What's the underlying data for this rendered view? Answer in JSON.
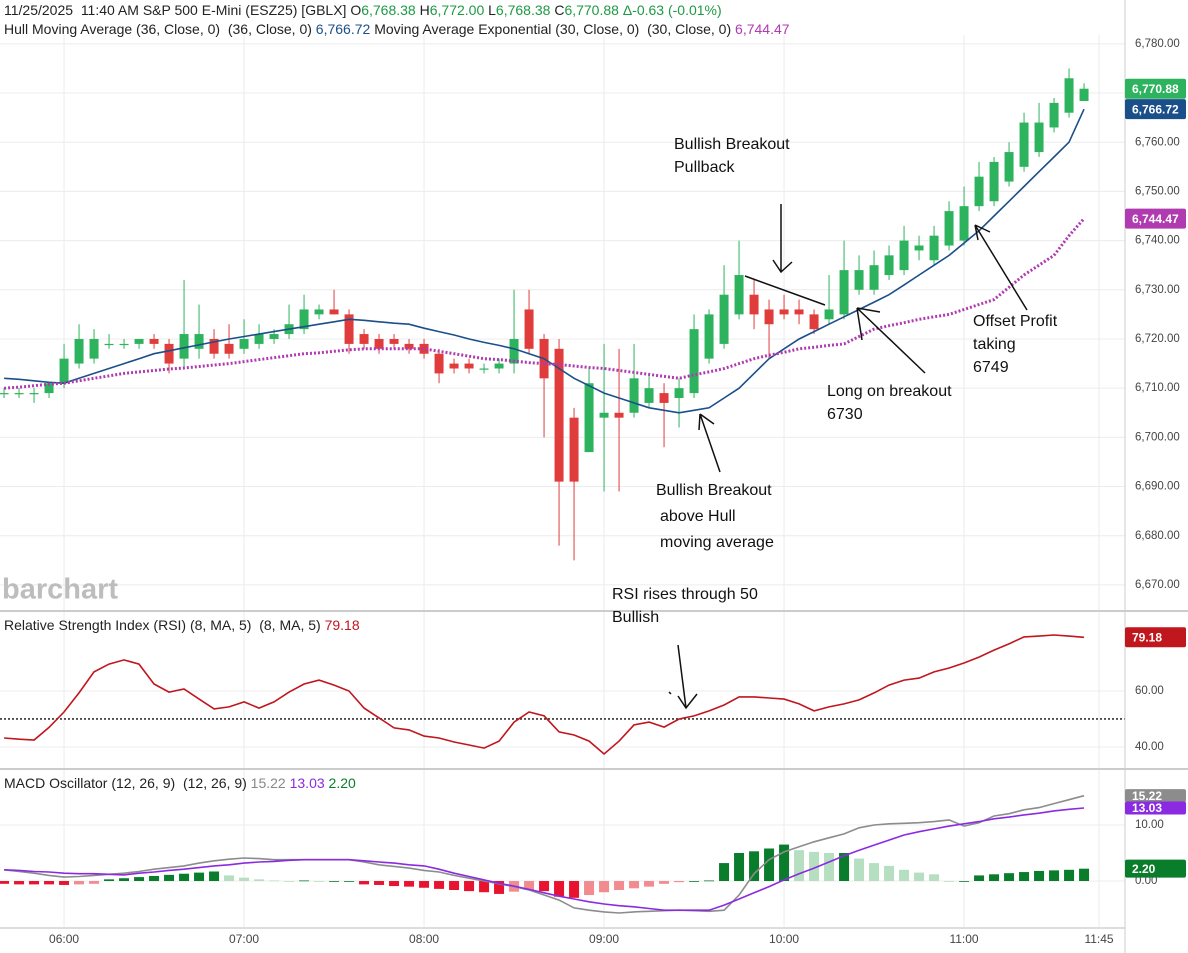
{
  "header": {
    "date": "11/25/2025",
    "time": "11:40 AM",
    "symbol": "S&P 500 E-Mini (ESZ25) [GBLX]",
    "ohlc": [
      {
        "key": "O",
        "value": "6,768.38"
      },
      {
        "key": "H",
        "value": "6,772.00"
      },
      {
        "key": "L",
        "value": "6,768.38"
      },
      {
        "key": "C",
        "value": "6,770.88"
      }
    ],
    "change": "Δ-0.63 (-0.01%)"
  },
  "chart_data": [
    {
      "type": "candlestick",
      "watermark": "barchart",
      "grid": true,
      "xlim": [
        -0.27,
        74.73
      ],
      "xticks": [
        {
          "value": 4,
          "label": "06:00"
        },
        {
          "value": 16,
          "label": "07:00"
        },
        {
          "value": 28,
          "label": "08:00"
        },
        {
          "value": 40,
          "label": "09:00"
        },
        {
          "value": 52,
          "label": "10:00"
        },
        {
          "value": 64,
          "label": "11:00"
        },
        {
          "value": 73,
          "label": "11:45"
        }
      ],
      "ylim": [
        6664.9,
        6781.8
      ],
      "yticks": [
        {
          "value": 6670,
          "label": "6,670.00"
        },
        {
          "value": 6680,
          "label": "6,680.00"
        },
        {
          "value": 6690,
          "label": "6,690.00"
        },
        {
          "value": 6700,
          "label": "6,700.00"
        },
        {
          "value": 6710,
          "label": "6,710.00"
        },
        {
          "value": 6720,
          "label": "6,720.00"
        },
        {
          "value": 6730,
          "label": "6,730.00"
        },
        {
          "value": 6740,
          "label": "6,740.00"
        },
        {
          "value": 6750,
          "label": "6,750.00"
        },
        {
          "value": 6760,
          "label": "6,760.00"
        },
        {
          "value": 6770,
          "label": "6,770.00"
        },
        {
          "value": 6780,
          "label": "6,780.00"
        }
      ],
      "up_color": "#2db35d",
      "down_color": "#e03c3c",
      "last_label": "6,770.88",
      "open": [
        6709,
        6709,
        6709,
        6709,
        6711,
        6715,
        6716,
        6719,
        6719,
        6719,
        6720,
        6719,
        6716,
        6718,
        6720,
        6719,
        6718,
        6719,
        6720,
        6721,
        6722,
        6725,
        6726,
        6725,
        6721,
        6720,
        6720,
        6719,
        6719,
        6717,
        6715,
        6715,
        6714,
        6714,
        6715,
        6726,
        6720,
        6718,
        6704,
        6697,
        6704,
        6705,
        6705,
        6707,
        6709,
        6708,
        6709,
        6716,
        6719,
        6725,
        6729,
        6726,
        6726,
        6726,
        6725,
        6724,
        6725,
        6730,
        6730,
        6733,
        6734,
        6738,
        6736,
        6739,
        6740,
        6747,
        6748,
        6752,
        6755,
        6758,
        6763,
        6766,
        6768.38
      ],
      "high": [
        6710,
        6710,
        6710,
        6711,
        6719,
        6723,
        6722,
        6721,
        6720,
        6720,
        6721,
        6720,
        6732,
        6727,
        6722,
        6723,
        6724,
        6723,
        6722,
        6727,
        6729,
        6727,
        6730,
        6726,
        6722,
        6721,
        6721,
        6720,
        6720,
        6718,
        6716,
        6716,
        6715,
        6716,
        6730,
        6730,
        6721,
        6720,
        6706,
        6714,
        6719,
        6718,
        6719,
        6713,
        6711,
        6712,
        6725,
        6726,
        6735,
        6740,
        6732,
        6728,
        6729,
        6728,
        6726,
        6733,
        6740,
        6737,
        6738,
        6739,
        6743,
        6741,
        6743,
        6748,
        6751,
        6756,
        6757,
        6760,
        6766,
        6768,
        6769,
        6775,
        6772
      ],
      "low": [
        6708,
        6708,
        6707,
        6708,
        6710,
        6714,
        6715,
        6718,
        6718,
        6718,
        6718,
        6713,
        6714,
        6716,
        6716,
        6716,
        6717,
        6718,
        6719,
        6720,
        6721,
        6724,
        6725,
        6717,
        6718,
        6717,
        6718,
        6717,
        6716,
        6711,
        6713,
        6713,
        6713,
        6713,
        6713,
        6717,
        6700,
        6678,
        6675,
        6697,
        6689,
        6689,
        6704,
        6706,
        6698,
        6702,
        6708,
        6715,
        6718,
        6724,
        6722,
        6716,
        6724,
        6723,
        6721,
        6723,
        6724,
        6729,
        6729,
        6732,
        6733,
        6736,
        6735,
        6738,
        6739,
        6746,
        6747,
        6751,
        6754,
        6757,
        6762,
        6765,
        6768.38
      ],
      "close": [
        6709,
        6709,
        6709,
        6711,
        6716,
        6720,
        6720,
        6719,
        6719,
        6720,
        6719,
        6715,
        6721,
        6721,
        6717,
        6717,
        6720,
        6721,
        6721,
        6723,
        6726,
        6726,
        6725,
        6719,
        6719,
        6718,
        6719,
        6718,
        6717,
        6713,
        6714,
        6714,
        6714,
        6715,
        6720,
        6718,
        6712,
        6691,
        6691,
        6711,
        6705,
        6704,
        6712,
        6710,
        6707,
        6710,
        6722,
        6725,
        6729,
        6733,
        6725,
        6723,
        6725,
        6725,
        6722,
        6726,
        6734,
        6734,
        6735,
        6737,
        6740,
        6739,
        6741,
        6746,
        6747,
        6753,
        6756,
        6758,
        6764,
        6764,
        6768,
        6773,
        6770.88
      ],
      "series": [
        {
          "name": "Hull Moving Average (36, Close, 0)",
          "params": "(36, Close, 0)",
          "color": "#1b4f8a",
          "style": "solid",
          "last_label": "6,766.72",
          "values": [
            6712,
            6711.8,
            6711.5,
            6711.2,
            6711,
            6712,
            6713,
            6714,
            6715,
            6716,
            6717,
            6717.6,
            6718.2,
            6718.8,
            6719.4,
            6720,
            6720.5,
            6721,
            6721.5,
            6722,
            6722.5,
            6723,
            6723.5,
            6724,
            6723.8,
            6723.5,
            6723.2,
            6723,
            6722.2,
            6721.5,
            6720.8,
            6720,
            6719.3,
            6718.7,
            6718,
            6717,
            6716,
            6714,
            6712,
            6710.5,
            6709,
            6708,
            6707,
            6706,
            6705.5,
            6705,
            6705.5,
            6706,
            6708,
            6710,
            6713,
            6716,
            6718,
            6720,
            6721.5,
            6723,
            6724.5,
            6726,
            6727.5,
            6729,
            6731,
            6733,
            6735,
            6737,
            6739.5,
            6742,
            6745,
            6748,
            6751,
            6754,
            6757,
            6760,
            6766.72
          ]
        },
        {
          "name": "Moving Average Exponential (30, Close, 0)",
          "params": "(30, Close, 0)",
          "color": "#b03ab0",
          "style": "dotted",
          "last_label": "6,744.47",
          "values": [
            6710,
            6710.2,
            6710.5,
            6710.8,
            6711,
            6711.5,
            6712,
            6712.5,
            6713,
            6713.3,
            6713.6,
            6713.9,
            6714.1,
            6714.4,
            6714.7,
            6715,
            6715.4,
            6715.8,
            6716.2,
            6716.6,
            6717,
            6717.2,
            6717.5,
            6717.8,
            6718,
            6718,
            6718,
            6718,
            6718,
            6717.5,
            6717,
            6716.5,
            6716,
            6715.8,
            6715.5,
            6715.2,
            6715,
            6714.8,
            6714.5,
            6714.2,
            6714,
            6713.6,
            6713.2,
            6712.8,
            6712.4,
            6712,
            6712.7,
            6713.3,
            6714,
            6715,
            6716,
            6716.7,
            6717.3,
            6718,
            6718.3,
            6718.7,
            6719,
            6720.5,
            6722,
            6722.7,
            6723.3,
            6724,
            6724.5,
            6725,
            6726,
            6727,
            6728,
            6730.5,
            6733,
            6735,
            6737,
            6741,
            6744.47
          ]
        }
      ],
      "annotations": [
        {
          "lines": [
            "Bullish Breakout",
            "Pullback"
          ]
        },
        {
          "lines": [
            "Long on breakout",
            "6730"
          ]
        },
        {
          "lines": [
            "Offset Profit",
            "taking",
            "6749"
          ]
        },
        {
          "lines": [
            "Bullish Breakout",
            "above Hull",
            "moving average"
          ]
        },
        {
          "lines": [
            "RSI rises through 50",
            "Bullish"
          ]
        }
      ]
    },
    {
      "type": "line",
      "title": "Relative Strength Index (RSI) (8, MA, 5)",
      "params": "(8, MA, 5)",
      "color": "#c0161e",
      "last_label": "79.18",
      "reference_line": 50,
      "grid": true,
      "ylim": [
        32.5,
        88.2
      ],
      "yticks": [
        {
          "value": 40,
          "label": "40.00"
        },
        {
          "value": 60,
          "label": "60.00"
        }
      ],
      "values": [
        43.2,
        42.8,
        42.5,
        47,
        52.5,
        59.3,
        66.8,
        69.6,
        71.1,
        69.6,
        62.5,
        59.6,
        60.7,
        57.1,
        53.6,
        54.3,
        56.1,
        53.9,
        56.1,
        59.6,
        62.5,
        63.9,
        62.1,
        60,
        53.9,
        50.4,
        46.8,
        46.1,
        43.9,
        43.2,
        41.8,
        40.7,
        39.6,
        42.1,
        48.9,
        52.5,
        51.1,
        45.4,
        44.3,
        42.1,
        37.5,
        42.1,
        47.9,
        48.9,
        47.1,
        50,
        51.1,
        52.9,
        55,
        57.9,
        57.9,
        57.5,
        57.1,
        55.4,
        52.9,
        54.3,
        55.4,
        56.8,
        59.3,
        62.1,
        63.9,
        64.6,
        66.8,
        68.2,
        70,
        72.1,
        74.6,
        76.8,
        79.3,
        79.6,
        80,
        79.6,
        79.18
      ]
    },
    {
      "type": "macd",
      "title": "MACD Oscillator (12, 26, 9)",
      "params": "(12, 26, 9)",
      "grid": true,
      "ylim": [
        -8.2,
        19.8
      ],
      "yticks": [
        {
          "value": 0,
          "label": "0.00"
        },
        {
          "value": 10,
          "label": "10.00"
        }
      ],
      "series": [
        {
          "color": "#8c8c8c",
          "last_label": "15.22",
          "values": [
            2.0,
            1.7,
            1.4,
            1.0,
            0.7,
            0.8,
            1.0,
            1.2,
            1.4,
            1.7,
            2.1,
            2.4,
            2.7,
            3.2,
            3.6,
            3.9,
            4.1,
            4.0,
            3.8,
            3.8,
            3.8,
            3.8,
            3.8,
            3.8,
            3.4,
            2.9,
            2.6,
            2.3,
            1.9,
            1.6,
            1.0,
            0.5,
            0,
            -0.5,
            -1.0,
            -1.6,
            -2.5,
            -3.4,
            -4.8,
            -5.2,
            -5.5,
            -5.7,
            -5.5,
            -5.4,
            -5.3,
            -5.2,
            -5.3,
            -5.4,
            -5.2,
            -2.5,
            1.3,
            3.8,
            5.2,
            6.1,
            7.0,
            7.7,
            8.4,
            9.5,
            10.0,
            10.2,
            10.3,
            10.4,
            10.6,
            10.9,
            9.8,
            10.4,
            11.6,
            12.0,
            12.7,
            13.1,
            13.8,
            14.5,
            15.22
          ]
        },
        {
          "color": "#8a2be2",
          "last_label": "13.03",
          "values": [
            2.0,
            1.9,
            1.7,
            1.6,
            1.4,
            1.3,
            1.3,
            1.2,
            1.1,
            1.4,
            1.6,
            1.9,
            2.1,
            2.4,
            2.7,
            2.9,
            3.2,
            3.4,
            3.5,
            3.7,
            3.8,
            3.8,
            3.8,
            3.8,
            3.6,
            3.4,
            3.2,
            2.9,
            2.7,
            2.1,
            1.4,
            0.8,
            0.2,
            -0.4,
            -0.9,
            -1.5,
            -2.1,
            -2.7,
            -3.2,
            -3.7,
            -4.1,
            -4.4,
            -4.6,
            -4.9,
            -5.2,
            -5.2,
            -5.2,
            -5.2,
            -4.3,
            -3.2,
            -2.1,
            -1.0,
            0.2,
            1.3,
            2.3,
            3.4,
            4.5,
            5.5,
            6.4,
            7.3,
            8.2,
            8.8,
            9.3,
            9.8,
            10.2,
            10.6,
            11.1,
            11.4,
            11.8,
            12.1,
            12.5,
            12.8,
            13.03
          ]
        }
      ],
      "histogram": {
        "colors": [
          "#0a7d2c",
          "#b5dfc0",
          "#e8132e",
          "#f28b8f"
        ],
        "last_label": "2.20",
        "values": [
          -0.5,
          -0.6,
          -0.6,
          -0.6,
          -0.7,
          -0.6,
          -0.5,
          0.3,
          0.5,
          0.7,
          0.9,
          1.1,
          1.3,
          1.5,
          1.7,
          1.0,
          0.6,
          0.3,
          0.1,
          0,
          0.1,
          0,
          0,
          0,
          -0.6,
          -0.7,
          -0.9,
          -1.0,
          -1.2,
          -1.4,
          -1.6,
          -1.8,
          -2.0,
          -2.3,
          -1.9,
          -1.6,
          -1.8,
          -2.8,
          -3.0,
          -2.5,
          -2.0,
          -1.6,
          -1.3,
          -1.0,
          -0.5,
          -0.2,
          0,
          0.1,
          3.2,
          5.0,
          5.3,
          5.8,
          6.5,
          5.5,
          5.2,
          5.0,
          5.0,
          4.0,
          3.2,
          2.7,
          2.0,
          1.5,
          1.2,
          0,
          0,
          1.0,
          1.2,
          1.4,
          1.6,
          1.8,
          1.9,
          2.0,
          2.2
        ]
      }
    }
  ]
}
